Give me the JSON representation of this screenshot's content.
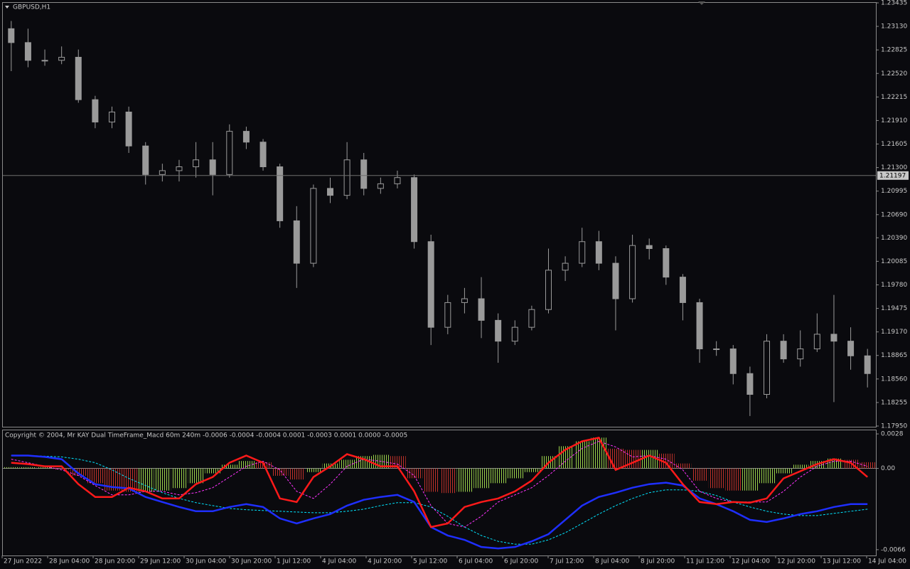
{
  "chart_data": [
    {
      "type": "candlestick",
      "title": "GBPUSD,H1",
      "color": "#9a9a9a",
      "open": [
        1.231,
        1.2292,
        1.2269,
        1.2269,
        1.2273,
        1.2218,
        1.2189,
        1.2202,
        1.2158,
        1.2121,
        1.2126,
        1.2131,
        1.214,
        1.2121,
        1.2177,
        1.2163,
        1.2131,
        1.2061,
        1.2006,
        1.2103,
        1.2094,
        1.214,
        1.2103,
        1.2109,
        1.2117,
        1.2034,
        1.1923,
        1.1955,
        1.196,
        1.1932,
        1.1905,
        1.1923,
        1.1946,
        1.1997,
        1.2006,
        1.2034,
        1.2006,
        1.196,
        1.2029,
        1.2025,
        1.1988,
        1.1955,
        1.1895,
        1.1895,
        1.1863,
        1.1836,
        1.1905,
        1.1882,
        1.1895,
        1.1914,
        1.1905,
        1.1886
      ],
      "high": [
        1.232,
        1.231,
        1.2283,
        1.2287,
        1.2283,
        1.2223,
        1.2209,
        1.2209,
        1.2163,
        1.2135,
        1.214,
        1.2163,
        1.2163,
        1.2186,
        1.2183,
        1.2167,
        1.2135,
        1.208,
        1.2108,
        1.2117,
        1.2163,
        1.2149,
        1.2117,
        1.2126,
        1.2121,
        1.2043,
        1.1965,
        1.1974,
        1.1988,
        1.1941,
        1.1932,
        1.1951,
        1.2025,
        1.2015,
        1.2052,
        1.2048,
        1.2015,
        1.2043,
        1.2038,
        1.2029,
        1.1992,
        1.196,
        1.1905,
        1.19,
        1.1872,
        1.1914,
        1.1914,
        1.1919,
        1.1941,
        1.1965,
        1.1923,
        1.1895
      ],
      "low": [
        1.2255,
        1.226,
        1.2262,
        1.2264,
        1.2214,
        1.2181,
        1.2181,
        1.2149,
        1.2108,
        1.2112,
        1.2112,
        1.2117,
        1.2094,
        1.2117,
        1.2154,
        1.2126,
        1.2052,
        1.1974,
        1.2001,
        1.2084,
        1.2089,
        1.2094,
        1.2096,
        1.2103,
        1.2025,
        1.19,
        1.1914,
        1.1941,
        1.1909,
        1.1877,
        1.19,
        1.1919,
        1.1941,
        1.1983,
        1.2001,
        1.1997,
        1.1919,
        1.1955,
        1.2011,
        1.1978,
        1.1932,
        1.1877,
        1.1886,
        1.1849,
        1.1808,
        1.1831,
        1.1877,
        1.1872,
        1.1891,
        1.1826,
        1.1868,
        1.1845
      ],
      "close": [
        1.2292,
        1.2269,
        1.2269,
        1.2273,
        1.2218,
        1.2189,
        1.2202,
        1.2158,
        1.2121,
        1.2126,
        1.2131,
        1.214,
        1.2121,
        1.2177,
        1.2163,
        1.2131,
        1.2061,
        1.2006,
        1.2103,
        1.2094,
        1.214,
        1.2103,
        1.2109,
        1.2117,
        1.2034,
        1.1923,
        1.1955,
        1.196,
        1.1932,
        1.1905,
        1.1923,
        1.1946,
        1.1997,
        1.2006,
        1.2034,
        1.2006,
        1.196,
        1.2029,
        1.2025,
        1.1988,
        1.1955,
        1.1895,
        1.1895,
        1.1863,
        1.1836,
        1.1905,
        1.1882,
        1.1895,
        1.1914,
        1.1905,
        1.1886,
        1.1863
      ],
      "current_price": 1.21197,
      "ylim": [
        1.1795,
        1.23435
      ],
      "yticks": [
        1.23435,
        {
          "value": 1.2313,
          "label": "1.23130"
        },
        1.22825,
        {
          "value": 1.2252,
          "label": "1.22520"
        },
        1.22215,
        {
          "value": 1.2191,
          "label": "1.21910"
        },
        1.21605,
        {
          "value": 1.213,
          "label": "1.21300"
        },
        1.20995,
        {
          "value": 1.2069,
          "label": "1.20690"
        },
        {
          "value": 1.2039,
          "label": "1.20390"
        },
        1.20085,
        {
          "value": 1.1978,
          "label": "1.19780"
        },
        1.19475,
        {
          "value": 1.1917,
          "label": "1.19170"
        },
        1.18865,
        {
          "value": 1.1856,
          "label": "1.18560"
        },
        1.18255,
        {
          "value": 1.1795,
          "label": "1.17950"
        }
      ],
      "x_labels": [
        "27 Jun 2022",
        "28 Jun 04:00",
        "28 Jun 20:00",
        "29 Jun 12:00",
        "30 Jun 04:00",
        "30 Jun 20:00",
        "1 Jul 12:00",
        "4 Jul 04:00",
        "4 Jul 20:00",
        "5 Jul 12:00",
        "6 Jul 04:00",
        "6 Jul 20:00",
        "7 Jul 12:00",
        "8 Jul 04:00",
        "8 Jul 20:00",
        "11 Jul 12:00",
        "12 Jul 04:00",
        "12 Jul 20:00",
        "13 Jul 12:00",
        "14 Jul 04:00"
      ]
    },
    {
      "type": "macd",
      "title": "Copyright © 2004, Mr KAY Dual TimeFrame_Macd 60m 240m  -0.0006 -0.0004 -0.0004 0.0001 -0.0003 0.0001 0.0000 -0.0005",
      "ylim": [
        -0.00707,
        0.00315
      ],
      "yticks": [
        0.0028,
        {
          "value": 0,
          "label": "0.00"
        },
        -0.0066
      ],
      "histogram": {
        "up_color": "#9ad14a",
        "down_color": "#c0322a",
        "values": [
          0.0001,
          0.0001,
          0.0001,
          -0.0001,
          -0.0006,
          -0.0012,
          -0.0018,
          -0.0019,
          -0.0019,
          -0.0018,
          -0.0016,
          -0.0012,
          -0.0004,
          0.0003,
          0.0006,
          0.0005,
          -0.0006,
          -0.0009,
          -0.0003,
          0.0004,
          0.0007,
          0.001,
          0.0011,
          0.001,
          -0.0008,
          -0.0019,
          -0.002,
          -0.0019,
          -0.0016,
          -0.0012,
          -0.0008,
          -0.0003,
          0.001,
          0.0018,
          0.0022,
          0.0025,
          0.0016,
          0.0015,
          0.0015,
          0.0012,
          0.0004,
          -0.001,
          -0.0016,
          -0.0018,
          -0.0018,
          -0.0012,
          -0.0004,
          0.0003,
          0.0006,
          0.0008,
          0.0007,
          0.0005
        ]
      },
      "series": [
        {
          "color": "#00e5ff",
          "dashed": true,
          "width": 1,
          "values": [
            0.00104,
            0.00104,
            0.00099,
            0.00093,
            0.00075,
            0.00046,
            -0.00012,
            -0.00081,
            -0.00139,
            -0.00197,
            -0.00244,
            -0.00278,
            -0.00302,
            -0.00325,
            -0.00336,
            -0.00342,
            -0.00348,
            -0.00354,
            -0.0036,
            -0.0036,
            -0.00348,
            -0.00331,
            -0.00302,
            -0.00278,
            -0.00278,
            -0.00313,
            -0.00389,
            -0.00476,
            -0.00545,
            -0.00592,
            -0.00615,
            -0.00615,
            -0.0058,
            -0.00522,
            -0.00447,
            -0.00371,
            -0.00302,
            -0.00244,
            -0.00197,
            -0.00174,
            -0.00174,
            -0.00186,
            -0.0022,
            -0.00273,
            -0.00313,
            -0.00348,
            -0.00371,
            -0.00383,
            -0.00383,
            -0.00365,
            -0.00348,
            -0.00331
          ]
        },
        {
          "color": "#ff33ff",
          "dashed": true,
          "width": 1,
          "values": [
            0.00075,
            0.00046,
            0.00017,
            -0.00012,
            -0.00058,
            -0.00139,
            -0.00215,
            -0.00215,
            -0.00186,
            -0.00186,
            -0.00215,
            -0.00197,
            -0.00157,
            -0.0007,
            0.00017,
            0.00058,
            -0.00012,
            -0.00186,
            -0.00244,
            -0.00128,
            0.00017,
            0.00075,
            0.00058,
            0.00035,
            -0.00058,
            -0.00302,
            -0.00447,
            -0.00476,
            -0.00389,
            -0.00273,
            -0.00215,
            -0.00157,
            -0.00058,
            0.00058,
            0.00162,
            0.0022,
            0.00174,
            0.00093,
            0.00104,
            0.00075,
            -0.00012,
            -0.00186,
            -0.00244,
            -0.00273,
            -0.00273,
            -0.00273,
            -0.00186,
            -0.0007,
            0.00017,
            0.00058,
            0.00058,
            0.00017
          ]
        },
        {
          "color": "#1f2fff",
          "dashed": false,
          "width": 2.5,
          "values": [
            0.00104,
            0.00104,
            0.00093,
            0.00075,
            -0.00041,
            -0.00128,
            -0.00151,
            -0.00162,
            -0.00232,
            -0.00273,
            -0.00313,
            -0.00348,
            -0.00348,
            -0.00313,
            -0.0029,
            -0.00313,
            -0.00406,
            -0.00447,
            -0.00406,
            -0.00371,
            -0.00302,
            -0.00255,
            -0.00232,
            -0.00215,
            -0.00273,
            -0.00476,
            -0.00545,
            -0.0058,
            -0.00638,
            -0.0065,
            -0.00638,
            -0.00592,
            -0.00534,
            -0.00418,
            -0.00302,
            -0.00232,
            -0.00197,
            -0.00157,
            -0.00128,
            -0.00116,
            -0.00139,
            -0.00244,
            -0.0029,
            -0.00348,
            -0.00418,
            -0.00435,
            -0.00406,
            -0.00371,
            -0.00348,
            -0.00313,
            -0.0029,
            -0.0029
          ]
        },
        {
          "color": "#ff1a1a",
          "dashed": false,
          "width": 2.5,
          "values": [
            0.00046,
            0.00035,
            0.00017,
            0.00017,
            -0.00128,
            -0.00232,
            -0.00232,
            -0.00157,
            -0.00186,
            -0.00244,
            -0.00244,
            -0.00128,
            -0.0007,
            0.00046,
            0.00104,
            0.00046,
            -0.00244,
            -0.00273,
            -0.0007,
            0.00017,
            0.00116,
            0.00075,
            0.00017,
            0.00017,
            -0.00186,
            -0.00476,
            -0.00447,
            -0.00313,
            -0.00273,
            -0.00244,
            -0.00186,
            -0.00099,
            0.00046,
            0.00151,
            0.0022,
            0.00249,
            -0.00012,
            0.00046,
            0.00104,
            0.00046,
            -0.00128,
            -0.00273,
            -0.0029,
            -0.00273,
            -0.00278,
            -0.00244,
            -0.00081,
            -0.00023,
            0.00035,
            0.00075,
            0.00046,
            -0.0007
          ]
        }
      ]
    }
  ]
}
